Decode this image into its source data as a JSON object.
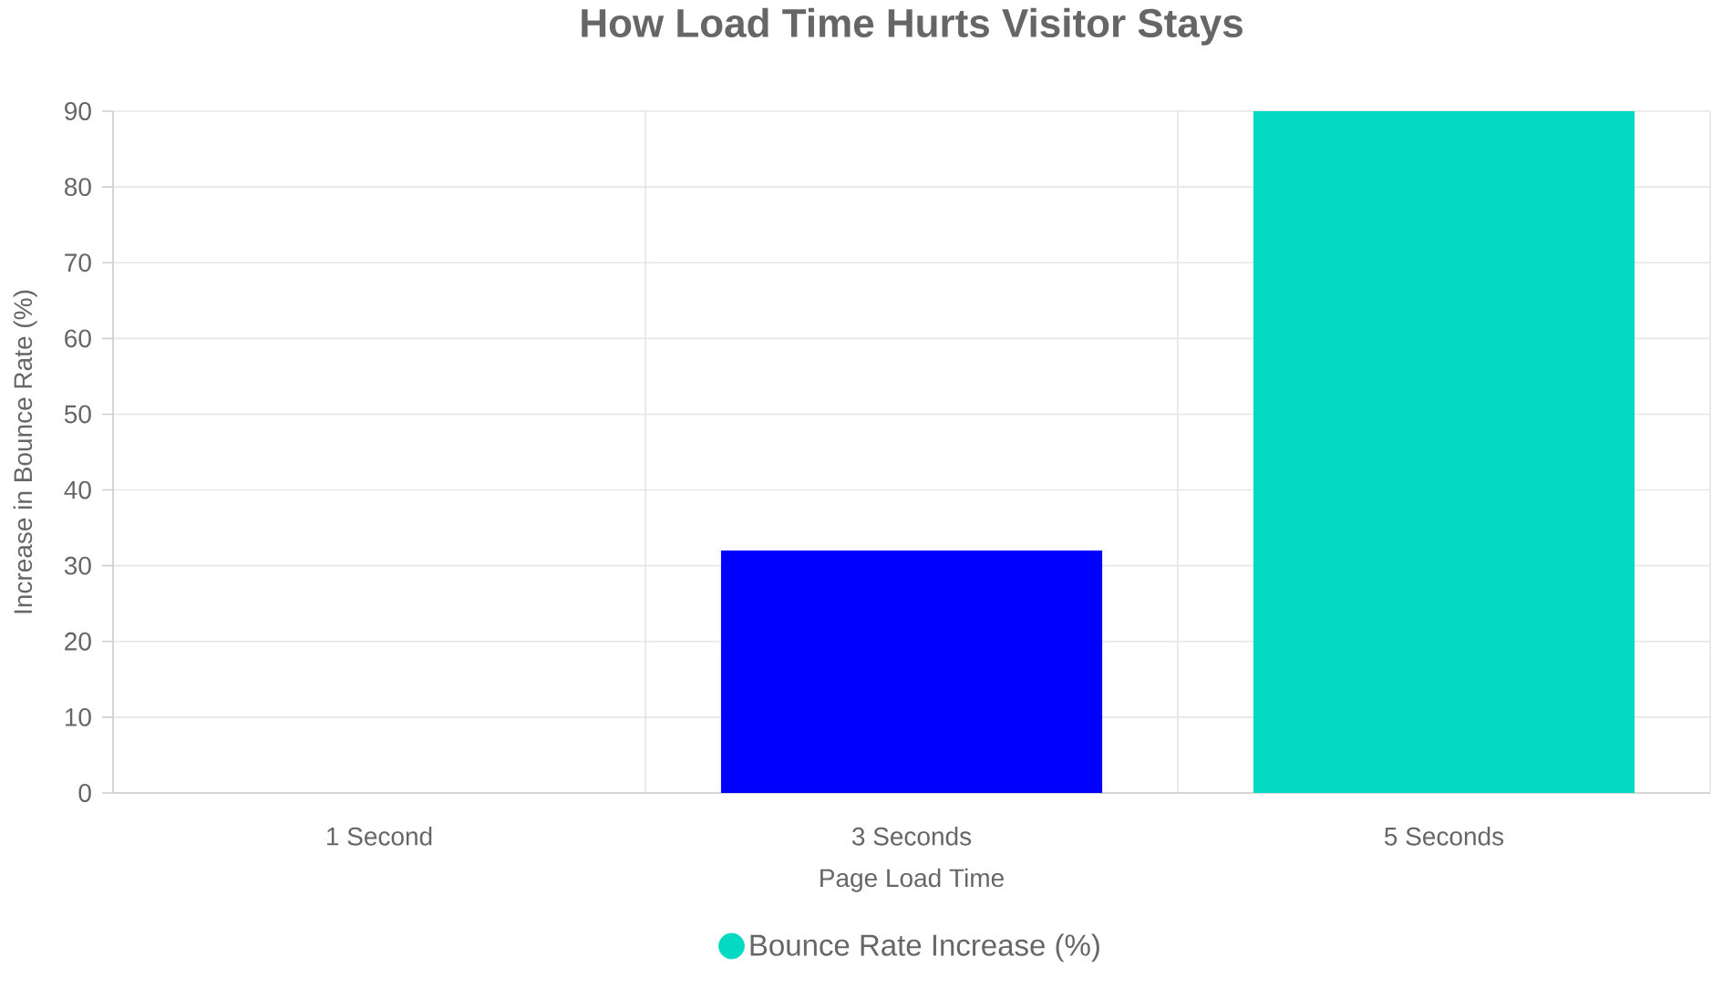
{
  "chart_data": {
    "type": "bar",
    "title": "How Load Time Hurts Visitor Stays",
    "xlabel": "Page Load Time",
    "ylabel": "Increase in Bounce Rate (%)",
    "categories": [
      "1 Second",
      "3 Seconds",
      "5 Seconds"
    ],
    "series": [
      {
        "name": "Bounce Rate Increase (%)",
        "color": "#04d9c4",
        "colors": [
          "#04d9c4",
          "#0000ff",
          "#04d9c4"
        ],
        "values": [
          0,
          32,
          90
        ]
      }
    ],
    "ylim": [
      0,
      90
    ],
    "yticks": [
      0,
      10,
      20,
      30,
      40,
      50,
      60,
      70,
      80,
      90
    ],
    "grid": true,
    "legend": "bottom"
  }
}
